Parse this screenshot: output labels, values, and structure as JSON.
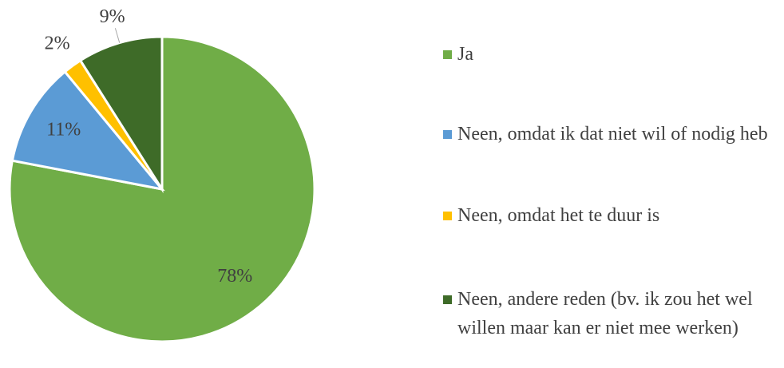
{
  "chart_data": {
    "type": "pie",
    "categories": [
      "Ja",
      "Neen, omdat ik dat niet wil of nodig heb",
      "Neen, omdat het te duur is",
      "Neen, andere reden (bv. ik zou het wel willen maar kan er niet mee werken)"
    ],
    "values": [
      78,
      11,
      2,
      9
    ],
    "value_labels": [
      "78%",
      "11%",
      "2%",
      "9%"
    ],
    "colors": [
      "#70ad47",
      "#5b9bd5",
      "#ffc000",
      "#3e6b28"
    ],
    "legend": "right"
  }
}
